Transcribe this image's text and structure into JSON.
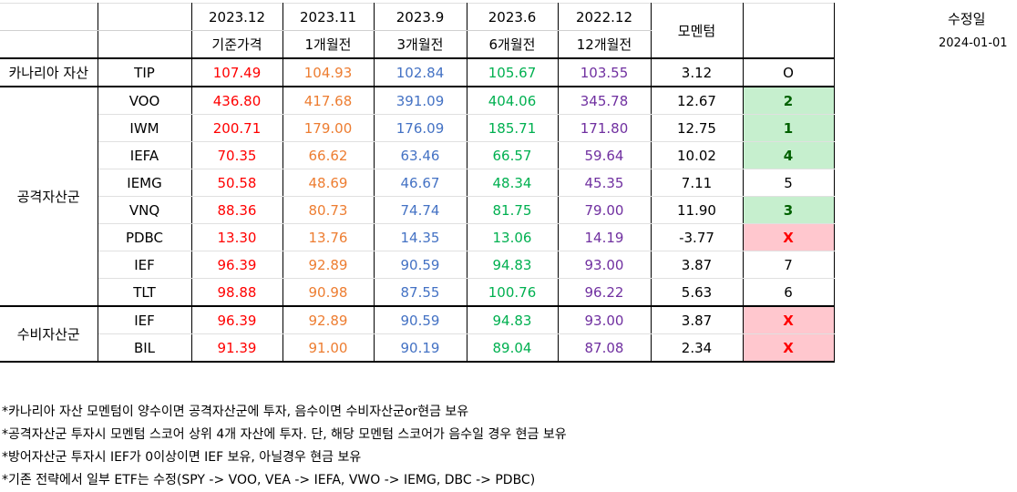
{
  "header": {
    "periods": [
      "2023.12",
      "2023.11",
      "2023.9",
      "2023.6",
      "2022.12"
    ],
    "sublabels": [
      "기준가격",
      "1개월전",
      "3개월전",
      "6개월전",
      "12개월전"
    ],
    "momentum_label": "모멘텀"
  },
  "revision": {
    "label": "수정일",
    "date": "2024-01-01"
  },
  "groups": {
    "canary": "카나리아 자산",
    "offensive": "공격자산군",
    "defensive": "수비자산군"
  },
  "rows": [
    {
      "ticker": "TIP",
      "p0": "107.49",
      "p1": "104.93",
      "p3": "102.84",
      "p6": "105.67",
      "p12": "103.55",
      "momentum": "3.12",
      "rank": "O"
    },
    {
      "ticker": "VOO",
      "p0": "436.80",
      "p1": "417.68",
      "p3": "391.09",
      "p6": "404.06",
      "p12": "345.78",
      "momentum": "12.67",
      "rank": "2"
    },
    {
      "ticker": "IWM",
      "p0": "200.71",
      "p1": "179.00",
      "p3": "176.09",
      "p6": "185.71",
      "p12": "171.80",
      "momentum": "12.75",
      "rank": "1"
    },
    {
      "ticker": "IEFA",
      "p0": "70.35",
      "p1": "66.62",
      "p3": "63.46",
      "p6": "66.57",
      "p12": "59.64",
      "momentum": "10.02",
      "rank": "4"
    },
    {
      "ticker": "IEMG",
      "p0": "50.58",
      "p1": "48.69",
      "p3": "46.67",
      "p6": "48.34",
      "p12": "45.35",
      "momentum": "7.11",
      "rank": "5"
    },
    {
      "ticker": "VNQ",
      "p0": "88.36",
      "p1": "80.73",
      "p3": "74.74",
      "p6": "81.75",
      "p12": "79.00",
      "momentum": "11.90",
      "rank": "3"
    },
    {
      "ticker": "PDBC",
      "p0": "13.30",
      "p1": "13.76",
      "p3": "14.35",
      "p6": "13.06",
      "p12": "14.19",
      "momentum": "-3.77",
      "rank": "X"
    },
    {
      "ticker": "IEF",
      "p0": "96.39",
      "p1": "92.89",
      "p3": "90.59",
      "p6": "94.83",
      "p12": "93.00",
      "momentum": "3.87",
      "rank": "7"
    },
    {
      "ticker": "TLT",
      "p0": "98.88",
      "p1": "90.98",
      "p3": "87.55",
      "p6": "100.76",
      "p12": "96.22",
      "momentum": "5.63",
      "rank": "6"
    },
    {
      "ticker": "IEF",
      "p0": "96.39",
      "p1": "92.89",
      "p3": "90.59",
      "p6": "94.83",
      "p12": "93.00",
      "momentum": "3.87",
      "rank": "X"
    },
    {
      "ticker": "BIL",
      "p0": "91.39",
      "p1": "91.00",
      "p3": "90.19",
      "p6": "89.04",
      "p12": "87.08",
      "momentum": "2.34",
      "rank": "X"
    }
  ],
  "notes": [
    "*카나리아 자산 모멘텀이 양수이면 공격자산군에 투자, 음수이면 수비자산군or현금 보유",
    "*공격자산군 투자시 모멘텀 스코어 상위 4개 자산에 투자. 단, 해당 모멘텀 스코어가 음수일 경우 현금 보유",
    "*방어자산군 투자시 IEF가 0이상이면 IEF 보유, 아닐경우 현금 보유",
    "*기존 전략에서 일부 ETF는 수정(SPY -> VOO, VEA -> IEFA, VWO -> IEMG, DBC -> PDBC)"
  ],
  "colors": {
    "p0": "#ff0000",
    "p1": "#ed7d31",
    "p3": "#4472c4",
    "p6": "#00b050",
    "p12": "#7030a0",
    "rank_green_bg": "#c6efce",
    "rank_red_bg": "#ffc7ce"
  }
}
